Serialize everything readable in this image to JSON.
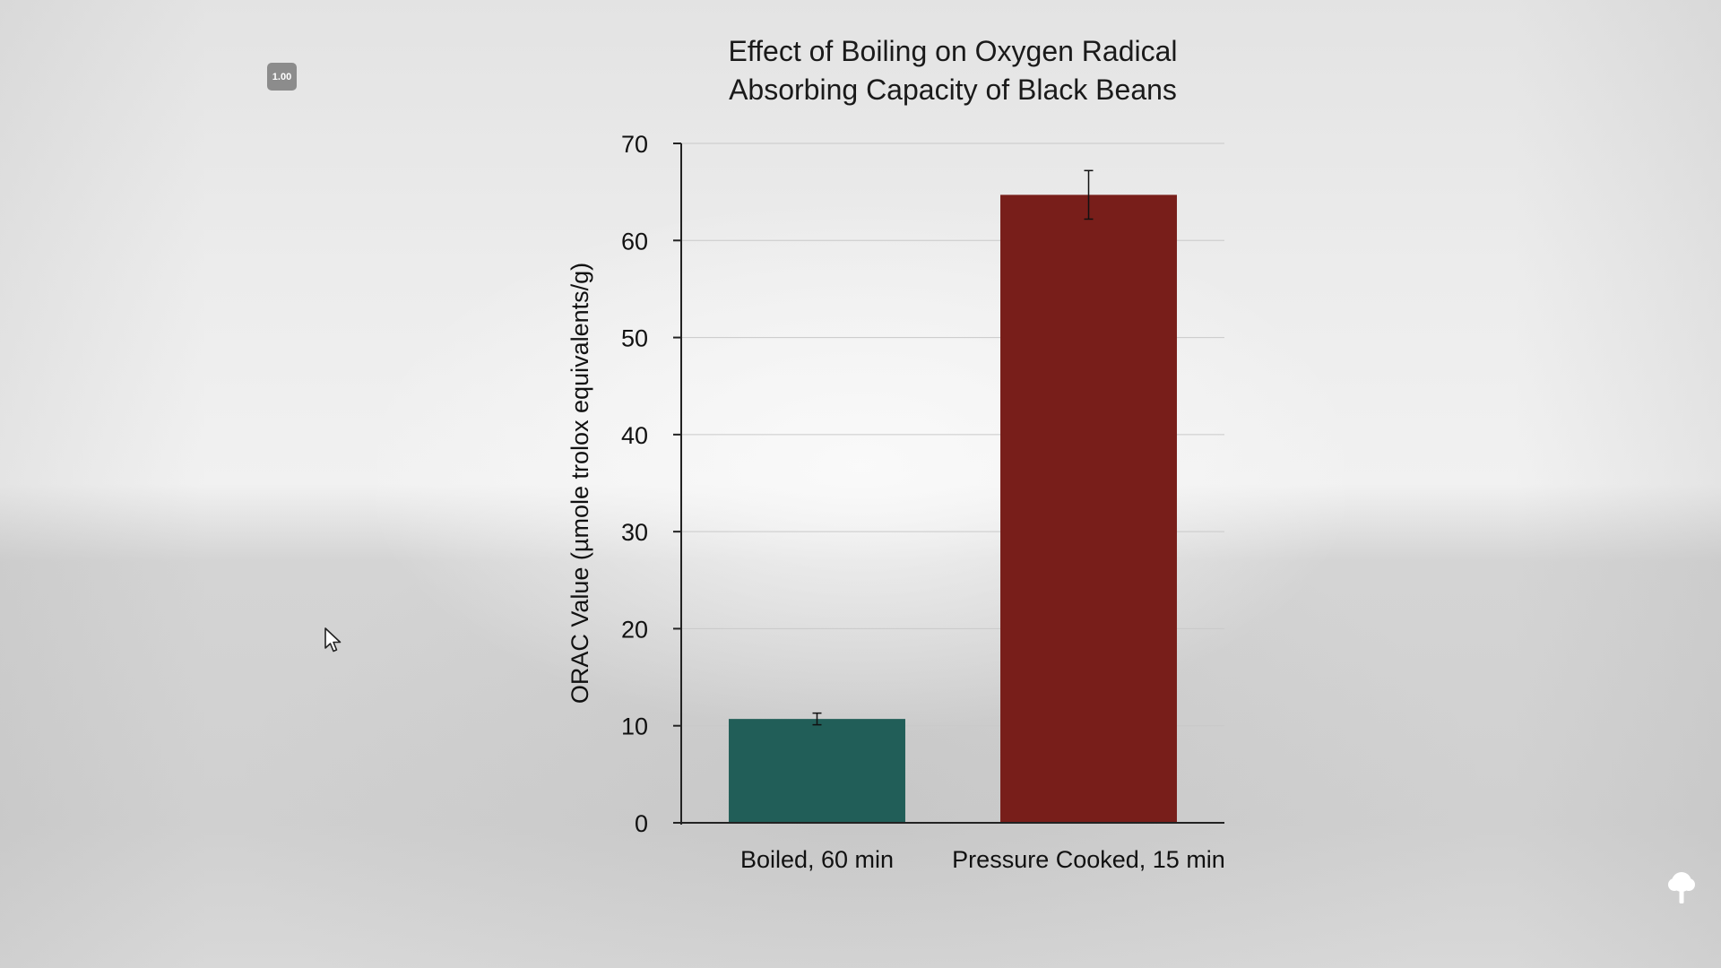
{
  "zoom_badge": "1.00",
  "colors": {
    "boiled": "#215e58",
    "pressure": "#781e1a",
    "axis": "#222222",
    "grid": "#c9c9c9"
  },
  "icons": {
    "cursor": "mouse-pointer-icon",
    "logo": "tree-logo-icon"
  },
  "chart_data": {
    "type": "bar",
    "title_lines": [
      "Effect of Boiling on Oxygen Radical",
      "Absorbing Capacity of Black Beans"
    ],
    "xlabel": "",
    "ylabel": "ORAC Value (µmole trolox equivalents/g)",
    "categories": [
      "Boiled, 60 min",
      "Pressure Cooked, 15 min"
    ],
    "values": [
      10.7,
      64.7
    ],
    "errors": [
      0.6,
      2.5
    ],
    "ylim": [
      0,
      70
    ],
    "yticks": [
      0,
      10,
      20,
      30,
      40,
      50,
      60,
      70
    ],
    "grid": true,
    "legend": "none"
  }
}
